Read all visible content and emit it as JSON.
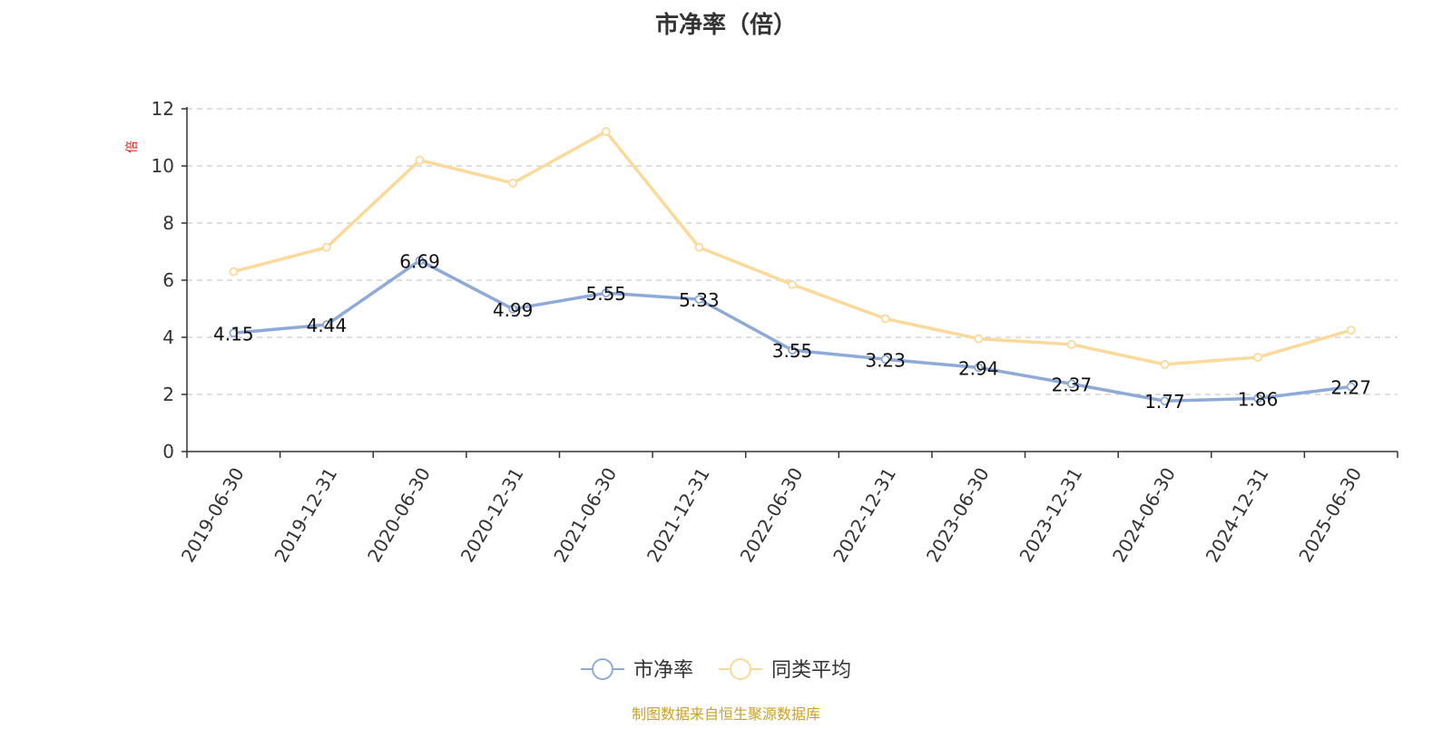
{
  "chart_data": {
    "type": "line",
    "title": "市净率（倍）",
    "ylabel": "倍",
    "xlabel": "",
    "ylim": [
      0,
      12
    ],
    "yticks": [
      0,
      2,
      4,
      6,
      8,
      10,
      12
    ],
    "grid": true,
    "legend_position": "bottom-center",
    "categories": [
      "2019-06-30",
      "2019-12-31",
      "2020-06-30",
      "2020-12-31",
      "2021-06-30",
      "2021-12-31",
      "2022-06-30",
      "2022-12-31",
      "2023-06-30",
      "2023-12-31",
      "2024-06-30",
      "2024-12-31",
      "2025-06-30"
    ],
    "series": [
      {
        "name": "市净率",
        "color": "#8eaad9",
        "values": [
          4.15,
          4.44,
          6.69,
          4.99,
          5.55,
          5.33,
          3.55,
          3.23,
          2.94,
          2.37,
          1.77,
          1.86,
          2.27
        ],
        "labels": [
          "4.15",
          "4.44",
          "6.69",
          "4.99",
          "5.55",
          "5.33",
          "3.55",
          "3.23",
          "2.94",
          "2.37",
          "1.77",
          "1.86",
          "2.27"
        ]
      },
      {
        "name": "同类平均",
        "color": "#fbd99a",
        "values": [
          6.3,
          7.15,
          10.2,
          9.4,
          11.2,
          7.15,
          5.85,
          4.65,
          3.95,
          3.75,
          3.05,
          3.3,
          4.25
        ]
      }
    ],
    "source": "制图数据来自恒生聚源数据库"
  }
}
